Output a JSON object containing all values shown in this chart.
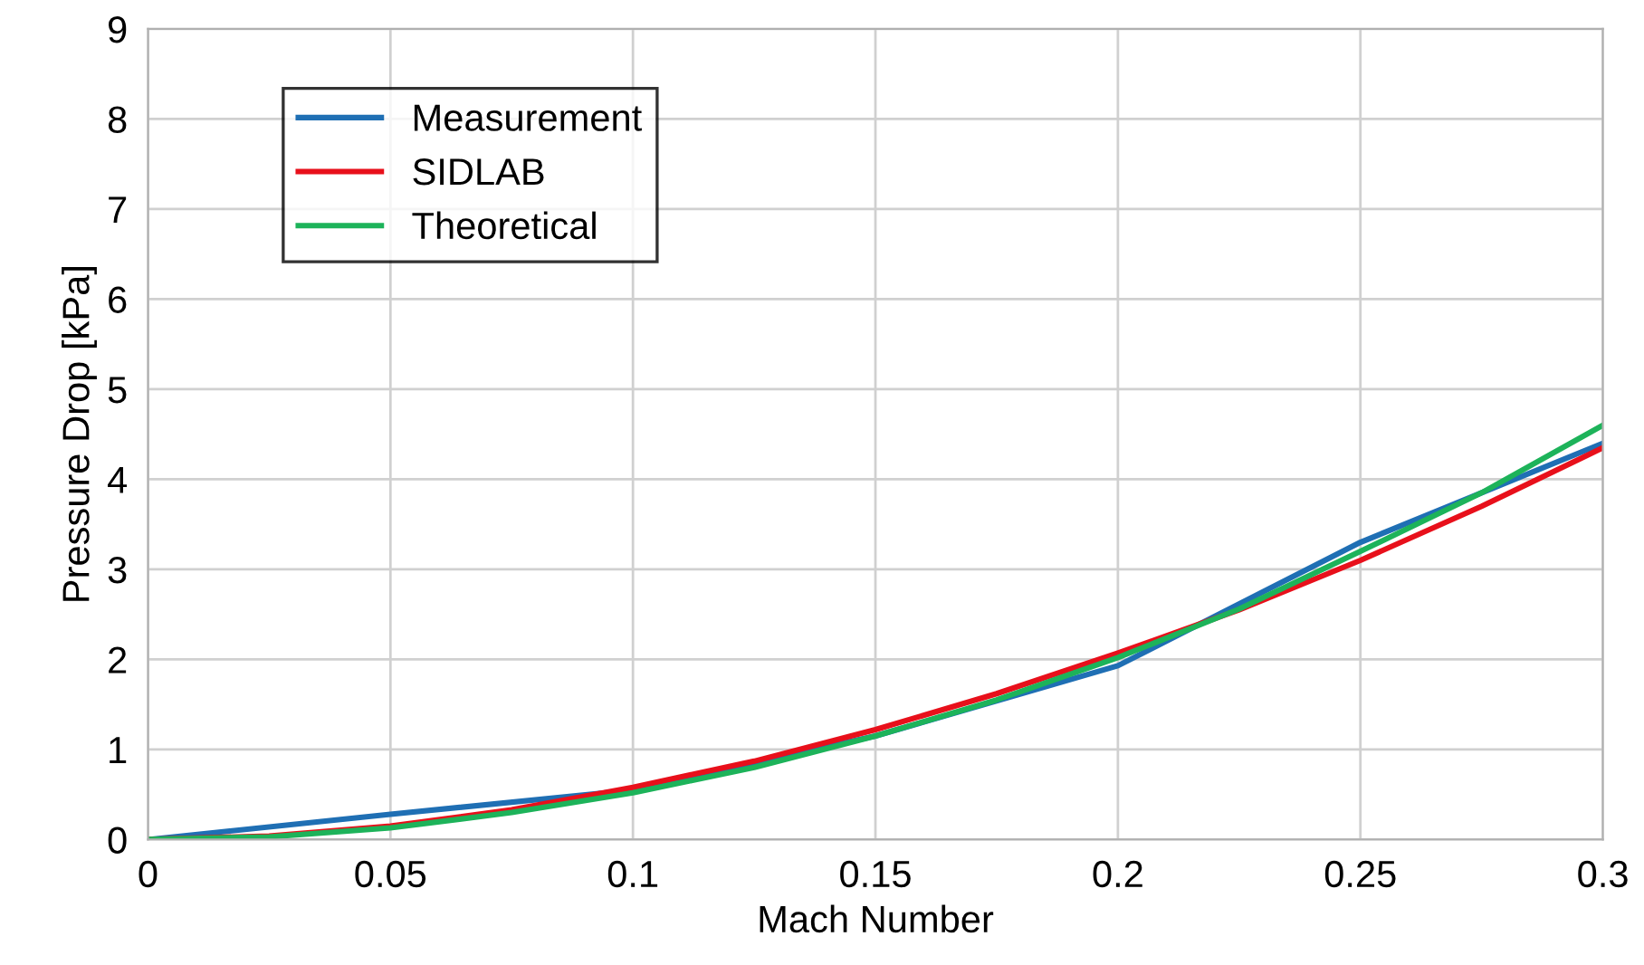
{
  "chart_data": {
    "type": "line",
    "xlabel": "Mach Number",
    "ylabel": "Pressure Drop [kPa]",
    "xlim": [
      0,
      0.3
    ],
    "xticks": [
      0,
      0.05,
      0.1,
      0.15,
      0.2,
      0.25,
      0.3
    ],
    "ylim": [
      0,
      9
    ],
    "yticks": [
      0,
      1,
      2,
      3,
      4,
      5,
      6,
      7,
      8,
      9
    ],
    "grid": true,
    "legend": "top left",
    "marker": "none",
    "line_style": "solid",
    "series": [
      {
        "name": "Measurement",
        "color": "#1f6fb4",
        "x": [
          0,
          0.05,
          0.1,
          0.15,
          0.2,
          0.25,
          0.3
        ],
        "values": [
          0,
          0.28,
          0.55,
          1.15,
          1.93,
          3.3,
          4.4
        ]
      },
      {
        "name": "SIDLAB",
        "color": "#e8101b",
        "x": [
          0,
          0.025,
          0.05,
          0.075,
          0.1,
          0.125,
          0.15,
          0.175,
          0.2,
          0.225,
          0.25,
          0.275,
          0.3
        ],
        "values": [
          0,
          0.04,
          0.15,
          0.33,
          0.58,
          0.87,
          1.22,
          1.62,
          2.07,
          2.55,
          3.1,
          3.7,
          4.35
        ]
      },
      {
        "name": "Theoretical",
        "color": "#1db35a",
        "x": [
          0,
          0.025,
          0.05,
          0.075,
          0.1,
          0.125,
          0.15,
          0.175,
          0.2,
          0.225,
          0.25,
          0.275,
          0.3
        ],
        "values": [
          0,
          0.03,
          0.13,
          0.3,
          0.52,
          0.8,
          1.15,
          1.55,
          2.02,
          2.56,
          3.2,
          3.85,
          4.6
        ]
      }
    ]
  }
}
